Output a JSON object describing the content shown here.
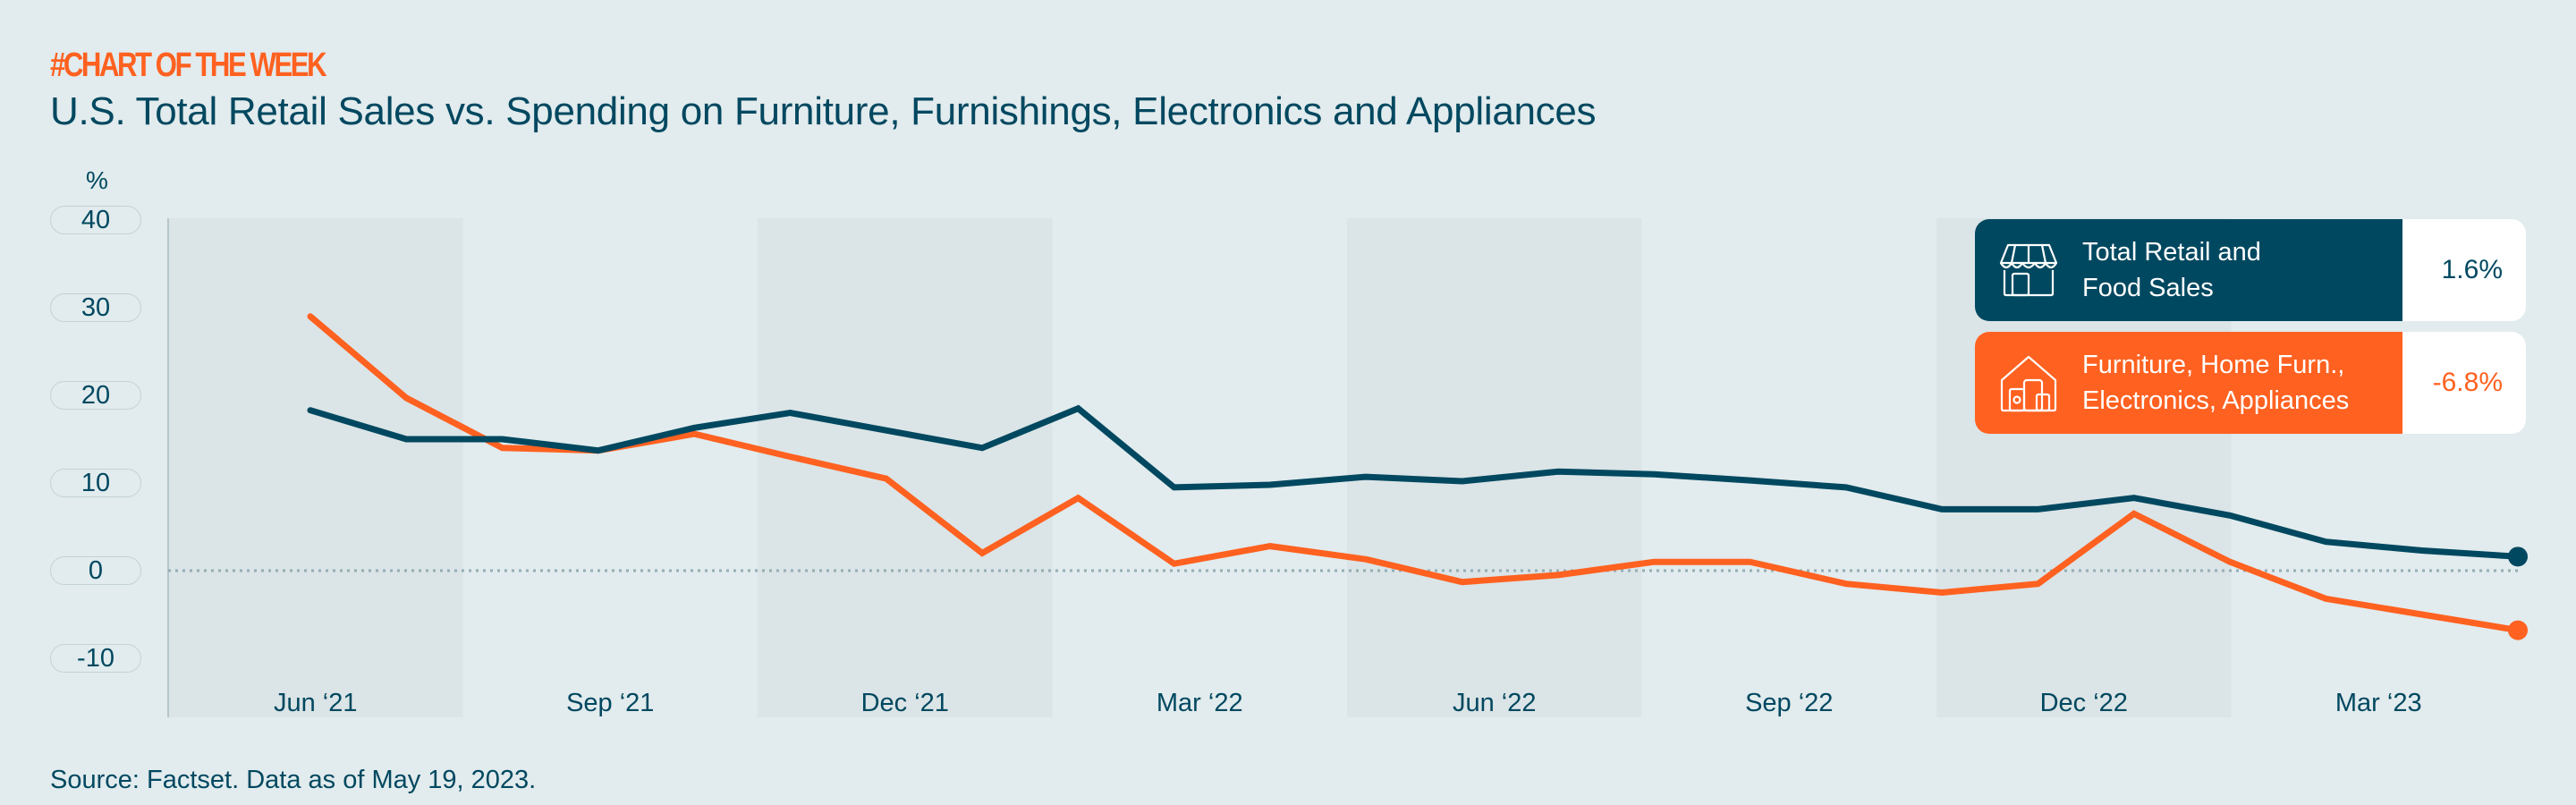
{
  "header": {
    "kicker": "#CHART OF THE WEEK",
    "title": "U.S. Total Retail Sales vs. Spending on Furniture, Furnishings, Electronics and Appliances"
  },
  "footer": {
    "source": "Source: Factset. Data as of May 19, 2023."
  },
  "colors": {
    "total_retail": "#004860",
    "furniture": "#ff6120",
    "background": "#e2ebed",
    "band": "#dbe4e6",
    "zero_line": "#93adb5"
  },
  "legend": [
    {
      "icon": "storefront-icon",
      "label_line1": "Total Retail and",
      "label_line2": "Food Sales",
      "value": "1.6%"
    },
    {
      "icon": "house-appliances-icon",
      "label_line1": "Furniture, Home Furn.,",
      "label_line2": "Electronics, Appliances",
      "value": "-6.8%"
    }
  ],
  "chart_data": {
    "type": "line",
    "title": "U.S. Total Retail Sales vs. Spending on Furniture, Furnishings, Electronics and Appliances",
    "xlabel": "",
    "ylabel": "%",
    "ylim": [
      -10,
      40
    ],
    "yticks": [
      40,
      30,
      20,
      10,
      0,
      -10
    ],
    "x_tick_labels": [
      "Jun ‘21",
      "Sep ‘21",
      "Dec ‘21",
      "Mar ‘22",
      "Jun ‘22",
      "Sep ‘22",
      "Dec ‘22",
      "Mar ‘23"
    ],
    "x": [
      "May '21",
      "Jun '21",
      "Jul '21",
      "Aug '21",
      "Sep '21",
      "Oct '21",
      "Nov '21",
      "Dec '21",
      "Jan '22",
      "Feb '22",
      "Mar '22",
      "Apr '22",
      "May '22",
      "Jun '22",
      "Jul '22",
      "Aug '22",
      "Sep '22",
      "Oct '22",
      "Nov '22",
      "Dec '22",
      "Jan '23",
      "Feb '23",
      "Mar '23",
      "Apr '23"
    ],
    "grid": false,
    "zero_line": "dotted",
    "alternating_quarter_bands": true,
    "legend_position": "top-right",
    "series": [
      {
        "name": "Total Retail and Food Sales",
        "color": "#004860",
        "values": [
          18.3,
          15.0,
          15.0,
          13.7,
          16.3,
          18.0,
          16.0,
          14.0,
          18.5,
          9.5,
          9.8,
          10.7,
          10.2,
          11.3,
          11.0,
          10.3,
          9.5,
          7.0,
          7.0,
          8.3,
          6.3,
          3.3,
          2.3,
          1.6
        ]
      },
      {
        "name": "Furniture, Home Furn., Electronics, Appliances",
        "color": "#ff6120",
        "values": [
          29.0,
          19.7,
          14.0,
          13.7,
          15.6,
          13.0,
          10.5,
          2.0,
          8.3,
          0.8,
          2.8,
          1.3,
          -1.3,
          -0.5,
          1.0,
          1.0,
          -1.5,
          -2.5,
          -1.5,
          6.5,
          1.0,
          -3.2,
          -5.0,
          -6.8
        ]
      }
    ]
  }
}
